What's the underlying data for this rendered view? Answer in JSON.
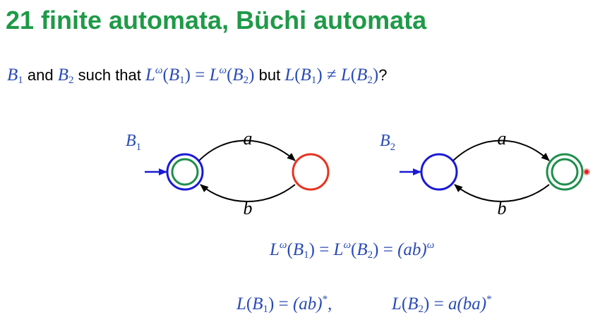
{
  "title": "21 finite automata, Büchi automata",
  "question": {
    "b1": "B",
    "b1_sub": "1",
    "and": " and ",
    "b2": "B",
    "b2_sub": "2",
    "such_that": " such that ",
    "but": " but ",
    "end": "?",
    "omega": "ω",
    "L": "L",
    "eq": " = ",
    "neq": " ≠ "
  },
  "automata": {
    "b1_label": "B",
    "b1_label_sub": "1",
    "b2_label": "B",
    "b2_label_sub": "2",
    "edge_a": "a",
    "edge_b": "b"
  },
  "equations": {
    "omega_lang": "(ab)",
    "omega_sup": "ω",
    "l1_rhs": "(ab)",
    "l1_sup": "*",
    "l1_comma": ",",
    "l2_rhs": "a(ba)",
    "l2_sup": "*"
  },
  "colors": {
    "title": "#1f9a48",
    "math": "#2a4bb5",
    "state_blue": "#1a1ad6",
    "state_green": "#1e8f4c",
    "state_red": "#e8321e",
    "pointer": "#e02020"
  }
}
